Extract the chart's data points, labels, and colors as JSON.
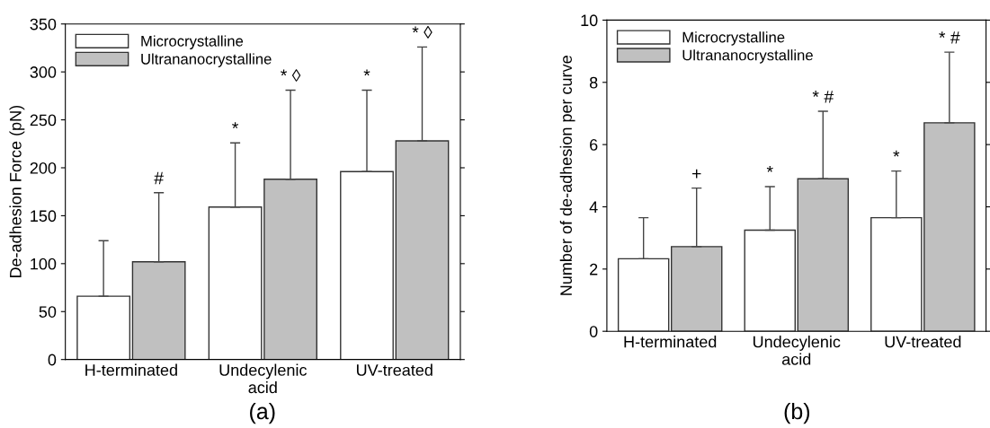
{
  "chart_data": [
    {
      "type": "bar",
      "categories": [
        "H-terminated",
        "Undecylenic\nacid",
        "UV-treated"
      ],
      "ylabel": "De-adhesion Force (pN)",
      "ylim": [
        0,
        350
      ],
      "yticks": [
        0,
        50,
        100,
        150,
        200,
        250,
        300,
        350
      ],
      "legend": "top left",
      "series": [
        {
          "name": "Microcrystalline",
          "color": "#ffffff",
          "values": [
            66,
            159,
            196
          ],
          "errors": [
            [
              66,
              124
            ],
            [
              159,
              226
            ],
            [
              196,
              281
            ]
          ]
        },
        {
          "name": "Ultrananocrystalline",
          "color": "#c0c0c0",
          "values": [
            102,
            188,
            228
          ],
          "errors": [
            [
              102,
              174
            ],
            [
              188,
              281
            ],
            [
              228,
              326
            ]
          ]
        }
      ],
      "annotations": [
        "(a)",
        "#",
        "*",
        "* ◊",
        "*",
        "* ◊"
      ]
    },
    {
      "type": "bar",
      "categories": [
        "H-terminated",
        "Undecylenic\nacid",
        "UV-treated"
      ],
      "ylabel": "Number of de-adhesion per curve",
      "ylim": [
        0,
        10
      ],
      "yticks": [
        0,
        2,
        4,
        6,
        8,
        10
      ],
      "legend": "top left",
      "series": [
        {
          "name": "Microcrystalline",
          "color": "#ffffff",
          "values": [
            2.33,
            3.25,
            3.65
          ],
          "errors": [
            [
              2.33,
              3.65
            ],
            [
              3.25,
              4.65
            ],
            [
              3.65,
              5.15
            ]
          ]
        },
        {
          "name": "Ultrananocrystalline",
          "color": "#c0c0c0",
          "values": [
            2.72,
            4.9,
            6.7
          ],
          "errors": [
            [
              2.72,
              4.6
            ],
            [
              4.9,
              7.07
            ],
            [
              6.7,
              8.97
            ]
          ]
        }
      ],
      "annotations": [
        "(b)",
        "+",
        "*",
        "* #",
        "*",
        "* #"
      ]
    }
  ]
}
